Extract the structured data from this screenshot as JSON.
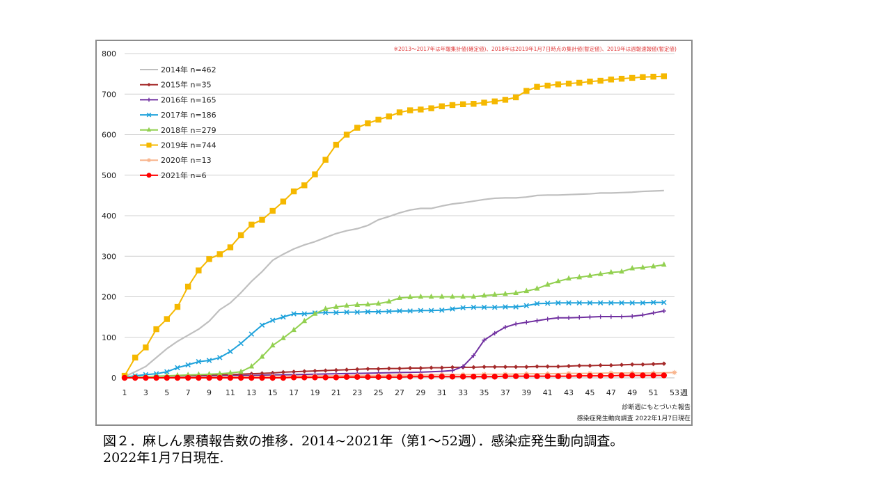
{
  "chart_data": {
    "type": "line",
    "note": "※2013～2017年は年報集計値(確定値)、2018年は2019年1月7日時点の集計値(暫定値)、2019年は週報速報値(暫定値)",
    "ylim": [
      0,
      800
    ],
    "yticks": [
      0,
      100,
      200,
      300,
      400,
      500,
      600,
      700,
      800
    ],
    "xticks": [
      1,
      3,
      5,
      7,
      9,
      11,
      13,
      15,
      17,
      19,
      21,
      23,
      25,
      27,
      29,
      31,
      33,
      35,
      37,
      39,
      41,
      43,
      45,
      47,
      49,
      51,
      53
    ],
    "xunit": "週",
    "grid": true,
    "legend_position": "top-left",
    "footer_lines": [
      "診断週にもとづいた報告",
      "感染症発生動向調査 2022年1月7日現在"
    ],
    "series": [
      {
        "name": "2014年 n=462",
        "color": "#bfbfbf",
        "marker": "none",
        "x": [
          1,
          2,
          3,
          4,
          5,
          6,
          7,
          8,
          9,
          10,
          11,
          12,
          13,
          14,
          15,
          16,
          17,
          18,
          19,
          20,
          21,
          22,
          23,
          24,
          25,
          26,
          27,
          28,
          29,
          30,
          31,
          32,
          33,
          34,
          35,
          36,
          37,
          38,
          39,
          40,
          41,
          42,
          43,
          44,
          45,
          46,
          47,
          48,
          49,
          50,
          51,
          52
        ],
        "values": [
          3,
          15,
          28,
          50,
          72,
          90,
          105,
          120,
          140,
          168,
          185,
          210,
          238,
          262,
          290,
          305,
          318,
          328,
          336,
          346,
          356,
          363,
          368,
          376,
          390,
          398,
          407,
          414,
          418,
          418,
          424,
          429,
          432,
          436,
          440,
          443,
          444,
          444,
          446,
          450,
          451,
          451,
          452,
          453,
          454,
          456,
          456,
          457,
          458,
          460,
          461,
          462
        ]
      },
      {
        "name": "2015年 n=35",
        "color": "#a52a2a",
        "marker": "diamond",
        "x": [
          1,
          2,
          3,
          4,
          5,
          6,
          7,
          8,
          9,
          10,
          11,
          12,
          13,
          14,
          15,
          16,
          17,
          18,
          19,
          20,
          21,
          22,
          23,
          24,
          25,
          26,
          27,
          28,
          29,
          30,
          31,
          32,
          33,
          34,
          35,
          36,
          37,
          38,
          39,
          40,
          41,
          42,
          43,
          44,
          45,
          46,
          47,
          48,
          49,
          50,
          51,
          52
        ],
        "values": [
          0,
          1,
          2,
          2,
          3,
          4,
          4,
          5,
          6,
          7,
          8,
          9,
          10,
          11,
          12,
          14,
          15,
          16,
          17,
          18,
          19,
          20,
          21,
          22,
          22,
          23,
          23,
          24,
          24,
          25,
          25,
          26,
          26,
          26,
          27,
          27,
          27,
          27,
          27,
          28,
          28,
          28,
          29,
          30,
          30,
          31,
          31,
          32,
          33,
          33,
          34,
          35
        ]
      },
      {
        "name": "2016年 n=165",
        "color": "#7030a0",
        "marker": "plus",
        "x": [
          1,
          3,
          5,
          7,
          9,
          11,
          13,
          15,
          17,
          19,
          21,
          23,
          25,
          27,
          29,
          31,
          32,
          33,
          34,
          35,
          36,
          37,
          38,
          39,
          40,
          41,
          42,
          43,
          44,
          45,
          46,
          47,
          48,
          49,
          50,
          51,
          52
        ],
        "values": [
          0,
          1,
          2,
          3,
          4,
          5,
          6,
          7,
          8,
          9,
          10,
          11,
          12,
          13,
          14,
          16,
          18,
          28,
          55,
          93,
          110,
          125,
          133,
          137,
          141,
          145,
          148,
          148,
          149,
          150,
          151,
          151,
          151,
          152,
          155,
          160,
          165
        ]
      },
      {
        "name": "2017年 n=186",
        "color": "#1fa2db",
        "marker": "x",
        "x": [
          1,
          2,
          3,
          4,
          5,
          6,
          7,
          8,
          9,
          10,
          11,
          12,
          13,
          14,
          15,
          16,
          17,
          18,
          19,
          20,
          21,
          22,
          23,
          24,
          25,
          26,
          27,
          28,
          29,
          30,
          31,
          32,
          33,
          34,
          35,
          36,
          37,
          38,
          39,
          40,
          41,
          42,
          43,
          44,
          45,
          46,
          47,
          48,
          49,
          50,
          51,
          52
        ],
        "values": [
          2,
          5,
          8,
          10,
          15,
          25,
          32,
          40,
          43,
          50,
          65,
          85,
          108,
          130,
          142,
          150,
          158,
          158,
          160,
          161,
          161,
          162,
          162,
          163,
          163,
          164,
          165,
          165,
          166,
          166,
          167,
          170,
          173,
          174,
          174,
          174,
          175,
          175,
          178,
          183,
          184,
          185,
          185,
          185,
          185,
          185,
          185,
          185,
          185,
          185,
          186,
          186
        ]
      },
      {
        "name": "2018年 n=279",
        "color": "#92d050",
        "marker": "triangle",
        "x": [
          1,
          2,
          3,
          4,
          5,
          6,
          7,
          8,
          9,
          10,
          11,
          12,
          13,
          14,
          15,
          16,
          17,
          18,
          19,
          20,
          21,
          22,
          23,
          24,
          25,
          26,
          27,
          28,
          29,
          30,
          31,
          32,
          33,
          34,
          35,
          36,
          37,
          38,
          39,
          40,
          41,
          42,
          43,
          44,
          45,
          46,
          47,
          48,
          49,
          50,
          51,
          52
        ],
        "values": [
          1,
          2,
          3,
          4,
          5,
          6,
          7,
          8,
          9,
          10,
          12,
          15,
          28,
          52,
          80,
          98,
          118,
          140,
          158,
          170,
          175,
          178,
          180,
          181,
          183,
          188,
          197,
          199,
          200,
          200,
          200,
          200,
          200,
          200,
          203,
          205,
          207,
          209,
          214,
          220,
          230,
          238,
          245,
          248,
          252,
          256,
          260,
          262,
          270,
          272,
          275,
          279
        ]
      },
      {
        "name": "2019年 n=744",
        "color": "#f5b800",
        "marker": "square",
        "x": [
          1,
          2,
          3,
          4,
          5,
          6,
          7,
          8,
          9,
          10,
          11,
          12,
          13,
          14,
          15,
          16,
          17,
          18,
          19,
          20,
          21,
          22,
          23,
          24,
          25,
          26,
          27,
          28,
          29,
          30,
          31,
          32,
          33,
          34,
          35,
          36,
          37,
          38,
          39,
          40,
          41,
          42,
          43,
          44,
          45,
          46,
          47,
          48,
          49,
          50,
          51,
          52
        ],
        "values": [
          5,
          50,
          75,
          120,
          145,
          175,
          225,
          265,
          293,
          305,
          322,
          352,
          378,
          390,
          412,
          435,
          460,
          475,
          502,
          538,
          575,
          600,
          617,
          628,
          637,
          645,
          655,
          660,
          662,
          665,
          670,
          673,
          675,
          676,
          679,
          682,
          686,
          692,
          708,
          718,
          721,
          724,
          726,
          728,
          731,
          733,
          736,
          738,
          740,
          742,
          743,
          744
        ]
      },
      {
        "name": "2020年 n=13",
        "color": "#f8b48c",
        "marker": "star",
        "x": [
          1,
          3,
          5,
          7,
          9,
          11,
          13,
          15,
          17,
          19,
          21,
          23,
          25,
          27,
          29,
          31,
          33,
          35,
          37,
          39,
          41,
          43,
          45,
          47,
          49,
          51,
          53
        ],
        "values": [
          0,
          1,
          1,
          2,
          2,
          3,
          3,
          4,
          4,
          5,
          5,
          6,
          6,
          7,
          7,
          8,
          8,
          9,
          9,
          10,
          10,
          11,
          11,
          12,
          12,
          12,
          13
        ]
      },
      {
        "name": "2021年 n=6",
        "color": "#ff0000",
        "marker": "circle",
        "x": [
          1,
          2,
          3,
          4,
          5,
          6,
          7,
          8,
          9,
          10,
          11,
          12,
          13,
          14,
          15,
          16,
          17,
          18,
          19,
          20,
          21,
          22,
          23,
          24,
          25,
          26,
          27,
          28,
          29,
          30,
          31,
          32,
          33,
          34,
          35,
          36,
          37,
          38,
          39,
          40,
          41,
          42,
          43,
          44,
          45,
          46,
          47,
          48,
          49,
          50,
          51,
          52
        ],
        "values": [
          0,
          0,
          0,
          0,
          0,
          0,
          0,
          0,
          0,
          0,
          0,
          0,
          0,
          0,
          0,
          0,
          1,
          1,
          1,
          1,
          1,
          2,
          2,
          2,
          2,
          2,
          2,
          3,
          3,
          3,
          3,
          3,
          3,
          3,
          3,
          3,
          4,
          4,
          4,
          4,
          4,
          4,
          4,
          5,
          5,
          5,
          5,
          6,
          6,
          6,
          6,
          6
        ]
      }
    ]
  },
  "caption": {
    "line1": "図２．麻しん累積報告数の推移．2014~2021年（第1～52週）．感染症発生動向調査。",
    "line2": "2022年1月7日現在."
  }
}
